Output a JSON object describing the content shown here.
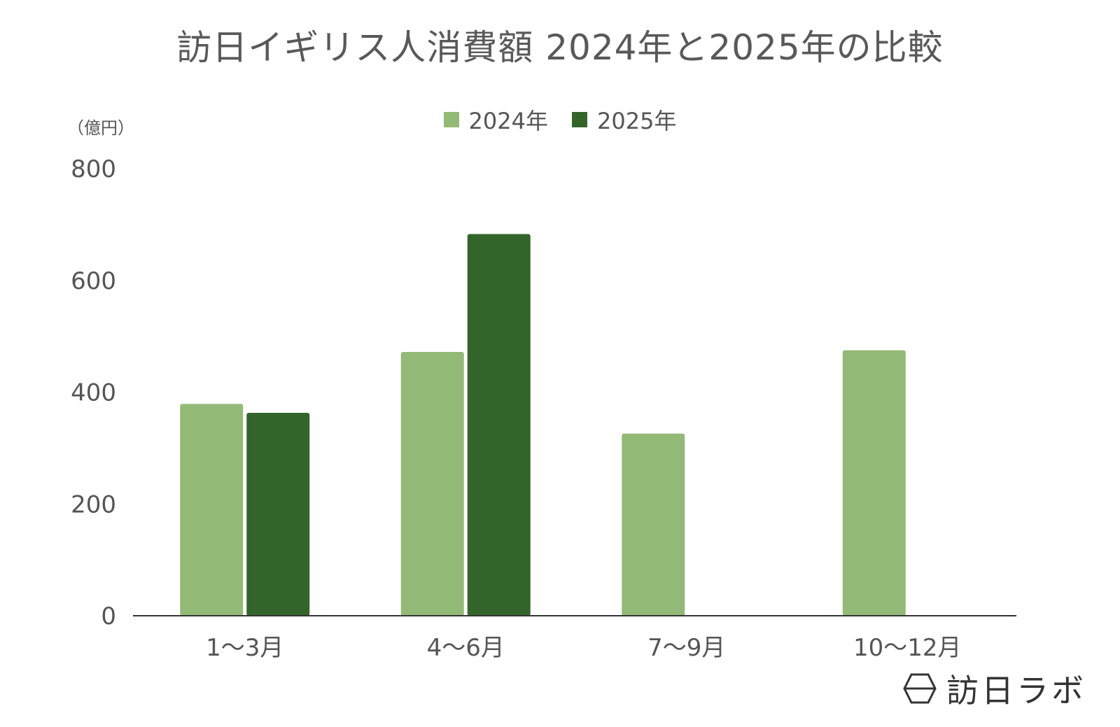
{
  "chart_data": {
    "type": "bar",
    "title": "訪日イギリス人消費額 2024年と2025年の比較",
    "ylabel": "（億円）",
    "ylim": [
      0,
      800
    ],
    "yticks": [
      "0",
      "200",
      "400",
      "600",
      "800"
    ],
    "categories": [
      "1～3月",
      "4～6月",
      "7～9月",
      "10～12月"
    ],
    "series": [
      {
        "name": "2024年",
        "color": "#93b976",
        "values": [
          379,
          472,
          326,
          475
        ]
      },
      {
        "name": "2025年",
        "color": "#33652b",
        "values": [
          363,
          683,
          null,
          null
        ]
      }
    ],
    "legend": "top-center",
    "grid": false
  },
  "watermark": {
    "text": "訪日ラボ",
    "icon": "hexagon-logo-icon"
  }
}
